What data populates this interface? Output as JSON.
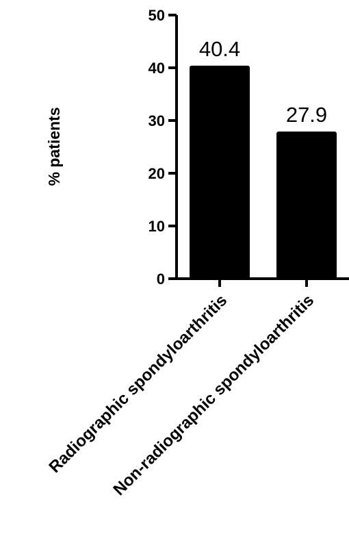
{
  "chart_data": {
    "type": "bar",
    "title": "",
    "xlabel": "",
    "ylabel": "% patients",
    "ylim": [
      0,
      50
    ],
    "yticks": [
      0,
      10,
      20,
      30,
      40,
      50
    ],
    "categories": [
      "Radiographic spondyloarthritis",
      "Non-radiographic spondyloarthritis"
    ],
    "values": [
      40.4,
      27.9
    ],
    "data_labels": [
      "40.4",
      "27.9"
    ],
    "bar_color": "#000000",
    "grid": false,
    "legend": "none"
  }
}
